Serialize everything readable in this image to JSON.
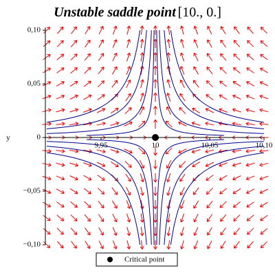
{
  "chart_data": {
    "type": "vector-field",
    "title": "Unstable saddle point",
    "title_suffix": "[10., 0.]",
    "y_label": "y",
    "xlim": [
      9.9,
      10.1
    ],
    "ylim": [
      -0.1,
      0.1
    ],
    "xticks": [
      {
        "value": 9.95,
        "label": "9,95"
      },
      10,
      {
        "value": 10.05,
        "label": "10,05"
      },
      {
        "value": 10.1,
        "label": "10,10"
      }
    ],
    "yticks": [
      {
        "value": 0.1,
        "label": "0,10"
      },
      {
        "value": 0.05,
        "label": "0,05"
      },
      0,
      {
        "value": -0.05,
        "label": "−0,05"
      },
      {
        "value": -0.1,
        "label": "−0,10"
      }
    ],
    "critical_point": {
      "x": 10,
      "y": 0,
      "name": "Critical point",
      "color": "#000000"
    },
    "arrow_color": "#ee0000",
    "curve_color": "#00008b"
  }
}
